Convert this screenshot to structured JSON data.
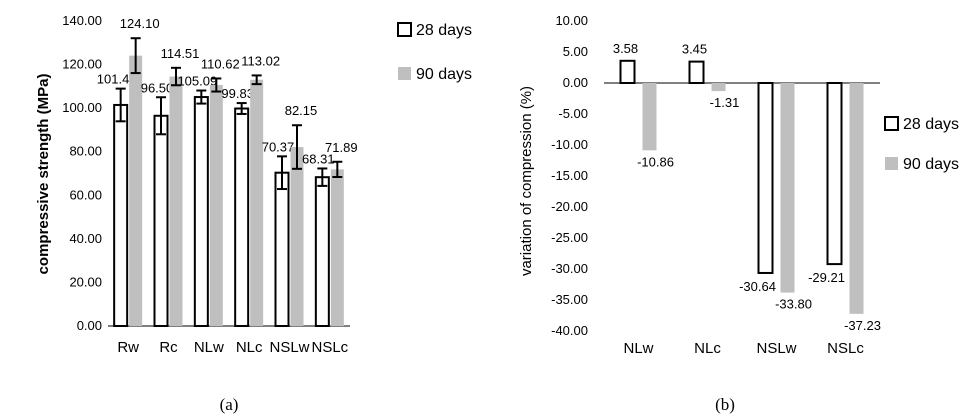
{
  "chart_data": [
    {
      "type": "bar",
      "panel_label": "(a)",
      "ylabel": "compressive strength (MPa)",
      "ylim": [
        0,
        140
      ],
      "yticks": [
        "0.00",
        "20.00",
        "40.00",
        "60.00",
        "80.00",
        "100.00",
        "120.00",
        "140.00"
      ],
      "categories": [
        "Rw",
        "Rc",
        "NLw",
        "NLc",
        "NSLw",
        "NSLc"
      ],
      "series": [
        {
          "name": "28 days",
          "color": "#ffffff",
          "values": [
            101.46,
            96.5,
            105.09,
            99.83,
            70.37,
            68.31
          ],
          "labels": [
            "101.46",
            "96.50",
            "105.09",
            "99.83",
            "70.37",
            "68.31"
          ],
          "error": [
            7.5,
            8.5,
            3.0,
            2.5,
            7.5,
            4.0
          ]
        },
        {
          "name": "90 days",
          "color": "#bfbfbf",
          "values": [
            124.1,
            114.51,
            110.62,
            113.02,
            82.15,
            71.89
          ],
          "labels": [
            "124.10",
            "114.51",
            "110.62",
            "113.02",
            "82.15",
            "71.89"
          ],
          "error": [
            8.0,
            4.0,
            3.0,
            2.0,
            10.0,
            3.5
          ]
        }
      ],
      "legend": "top-right"
    },
    {
      "type": "bar",
      "panel_label": "(b)",
      "ylabel": "variation of compression (%)",
      "ylim": [
        -40,
        10
      ],
      "yticks": [
        "-40.00",
        "-35.00",
        "-30.00",
        "-25.00",
        "-20.00",
        "-15.00",
        "-10.00",
        "-5.00",
        "0.00",
        "5.00",
        "10.00"
      ],
      "categories": [
        "NLw",
        "NLc",
        "NSLw",
        "NSLc"
      ],
      "series": [
        {
          "name": "28 days",
          "color": "#ffffff",
          "values": [
            3.58,
            3.45,
            -30.64,
            -29.21
          ],
          "labels": [
            "3.58",
            "3.45",
            "-30.64",
            "-29.21"
          ]
        },
        {
          "name": "90 days",
          "color": "#bfbfbf",
          "values": [
            -10.86,
            -1.31,
            -33.8,
            -37.23
          ],
          "labels": [
            "-10.86",
            "-1.31",
            "-33.80",
            "-37.23"
          ]
        }
      ],
      "legend": "right"
    }
  ]
}
